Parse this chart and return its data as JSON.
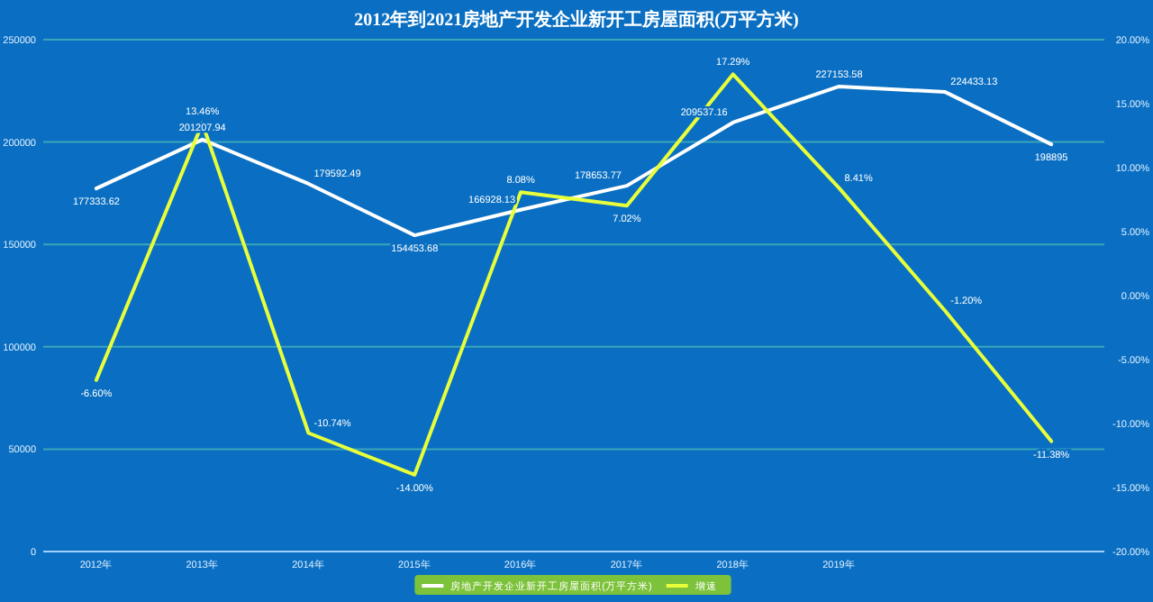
{
  "chart_data": {
    "type": "line",
    "title": "2012年到2021房地产开发企业新开工房屋面积(万平方米)",
    "categories": [
      "2012年",
      "2013年",
      "2014年",
      "2015年",
      "2016年",
      "2017年",
      "2018年",
      "2019年",
      null,
      null
    ],
    "series": [
      {
        "name": "房地产开发企业新开工房屋面积(万平方米)",
        "color": "#ffffff",
        "values": [
          177333.62,
          201207.94,
          179592.49,
          154453.68,
          166928.13,
          178653.77,
          209537.16,
          227153.58,
          224433.13,
          198895
        ]
      },
      {
        "name": "增速",
        "color": "#e8ff3a",
        "axis": "y2",
        "values": [
          -6.6,
          13.46,
          -10.74,
          -14.0,
          8.08,
          7.02,
          17.29,
          8.41,
          -1.2,
          -11.38
        ],
        "value_labels": [
          "-6.60%",
          "13.46%",
          "-10.74%",
          "-14.00%",
          "8.08%",
          "7.02%",
          "17.29%",
          "8.41%",
          "-1.20%",
          "-11.38%"
        ]
      }
    ],
    "data_labels": true,
    "ylim": [
      0,
      250000
    ],
    "yticks": [
      0,
      50000,
      100000,
      150000,
      200000,
      250000
    ],
    "y2lim": [
      -20,
      20
    ],
    "y2ticks": [
      {
        "value": -20,
        "label": "-20.00%"
      },
      {
        "value": -15,
        "label": "-15.00%"
      },
      {
        "value": -10,
        "label": "-10.00%"
      },
      {
        "value": -5,
        "label": "-5.00%"
      },
      {
        "value": 0,
        "label": "0.00%"
      },
      {
        "value": 5,
        "label": "5.00%"
      },
      {
        "value": 10,
        "label": "10.00%"
      },
      {
        "value": 15,
        "label": "15.00%"
      },
      {
        "value": 20,
        "label": "20.00%"
      }
    ],
    "grid": "y",
    "legend": "bottom",
    "marker": "none",
    "line_style": "solid"
  }
}
